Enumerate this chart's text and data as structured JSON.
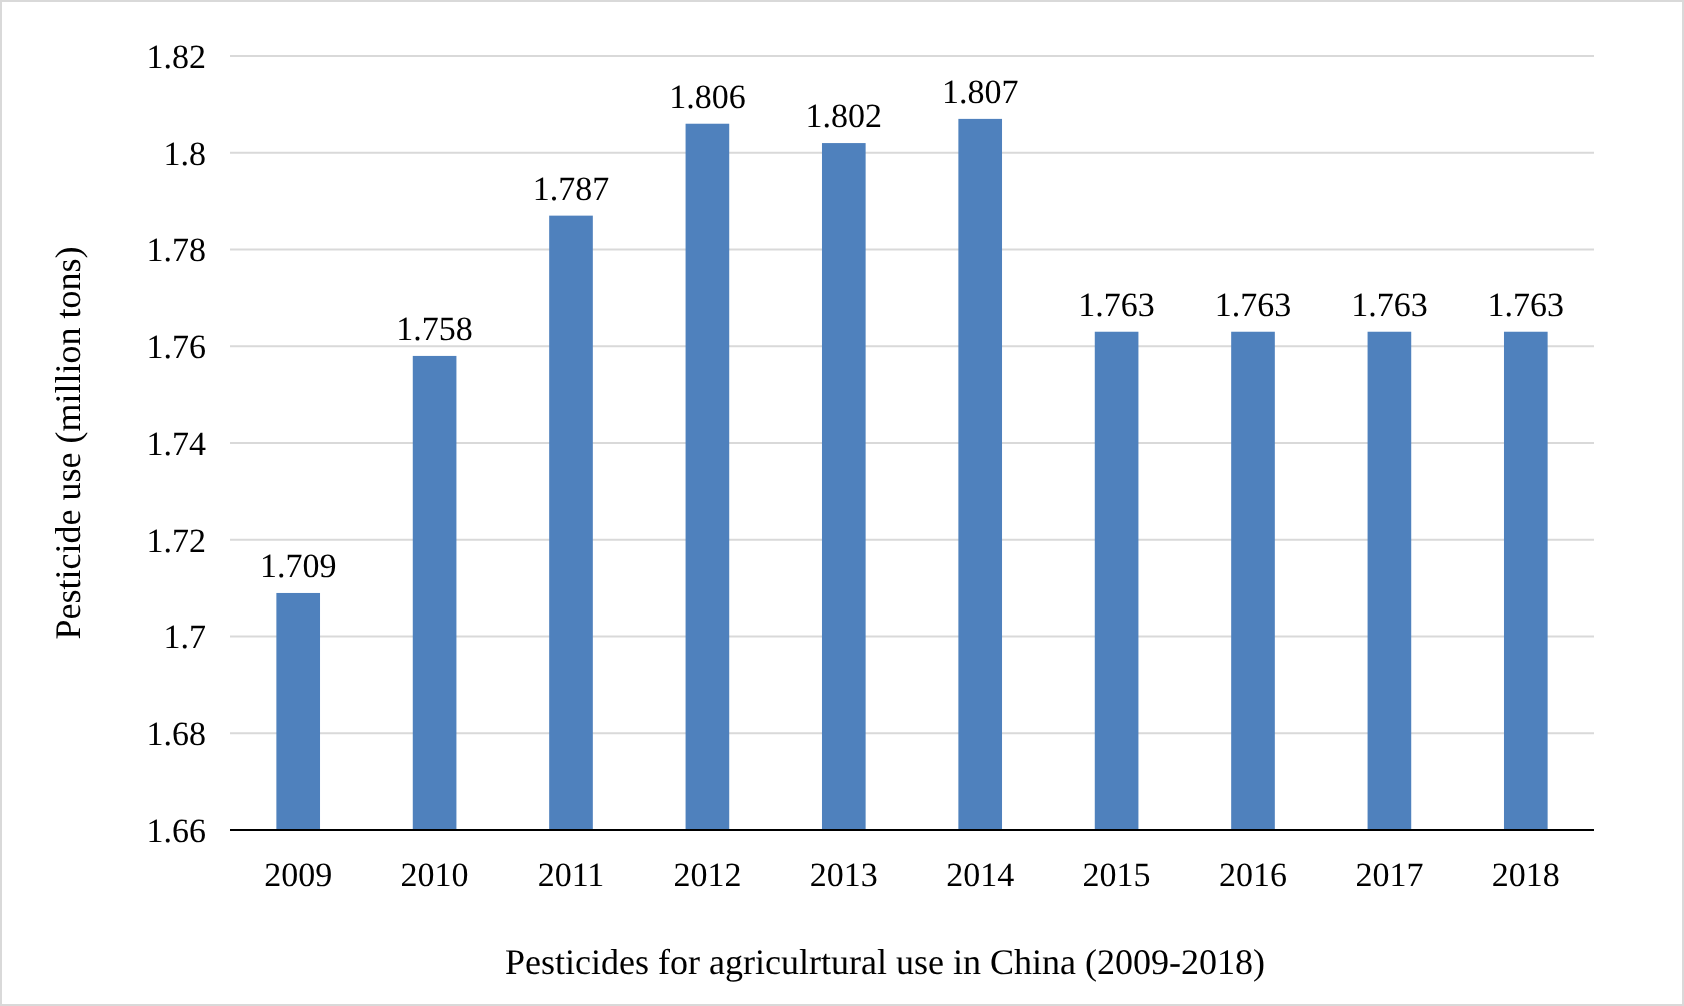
{
  "chart_data": {
    "type": "bar",
    "xlabel": "Pesticides for agriculrtural use in China (2009-2018)",
    "ylabel": "Pesticide use (million tons)",
    "categories": [
      "2009",
      "2010",
      "2011",
      "2012",
      "2013",
      "2014",
      "2015",
      "2016",
      "2017",
      "2018"
    ],
    "values": [
      1.709,
      1.758,
      1.787,
      1.806,
      1.802,
      1.807,
      1.763,
      1.763,
      1.763,
      1.763
    ],
    "color": "#4f81bd",
    "ylim": [
      1.66,
      1.82
    ],
    "yticks": [
      1.66,
      1.68,
      1.7,
      1.72,
      1.74,
      1.76,
      1.78,
      1.8,
      1.82
    ],
    "grid": "y",
    "data_labels": true
  }
}
